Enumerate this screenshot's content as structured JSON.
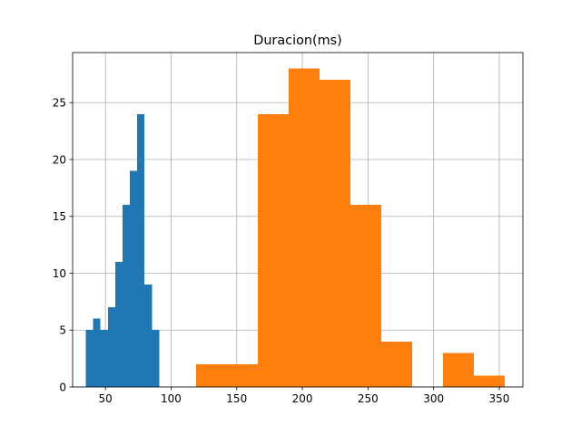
{
  "chart_data": {
    "type": "histogram",
    "title": "Duracion(ms)",
    "xlabel": "",
    "ylabel": "",
    "xlim": [
      25,
      368
    ],
    "ylim": [
      0,
      29.4
    ],
    "grid": true,
    "x_ticks": [
      50,
      100,
      150,
      200,
      250,
      300,
      350
    ],
    "y_ticks": [
      0,
      5,
      10,
      15,
      20,
      25
    ],
    "series": [
      {
        "color": "#1f77b4",
        "bins": [
          {
            "x0": 35,
            "x1": 40.6,
            "count": 5
          },
          {
            "x0": 40.6,
            "x1": 46.2,
            "count": 6
          },
          {
            "x0": 46.2,
            "x1": 51.8,
            "count": 5
          },
          {
            "x0": 51.8,
            "x1": 57.4,
            "count": 7
          },
          {
            "x0": 57.4,
            "x1": 63.0,
            "count": 11
          },
          {
            "x0": 63.0,
            "x1": 68.6,
            "count": 16
          },
          {
            "x0": 68.6,
            "x1": 74.2,
            "count": 19
          },
          {
            "x0": 74.2,
            "x1": 79.8,
            "count": 24
          },
          {
            "x0": 79.8,
            "x1": 85.4,
            "count": 9
          },
          {
            "x0": 85.4,
            "x1": 91.0,
            "count": 5
          }
        ]
      },
      {
        "color": "#ff7f0e",
        "bins": [
          {
            "x0": 119,
            "x1": 142.5,
            "count": 2
          },
          {
            "x0": 142.5,
            "x1": 166,
            "count": 2
          },
          {
            "x0": 166,
            "x1": 189.5,
            "count": 24
          },
          {
            "x0": 189.5,
            "x1": 213,
            "count": 28
          },
          {
            "x0": 213,
            "x1": 236.5,
            "count": 27
          },
          {
            "x0": 236.5,
            "x1": 260,
            "count": 16
          },
          {
            "x0": 260,
            "x1": 283.5,
            "count": 4
          },
          {
            "x0": 283.5,
            "x1": 307,
            "count": 0
          },
          {
            "x0": 307,
            "x1": 330.5,
            "count": 3
          },
          {
            "x0": 330.5,
            "x1": 354,
            "count": 1
          }
        ]
      }
    ]
  }
}
